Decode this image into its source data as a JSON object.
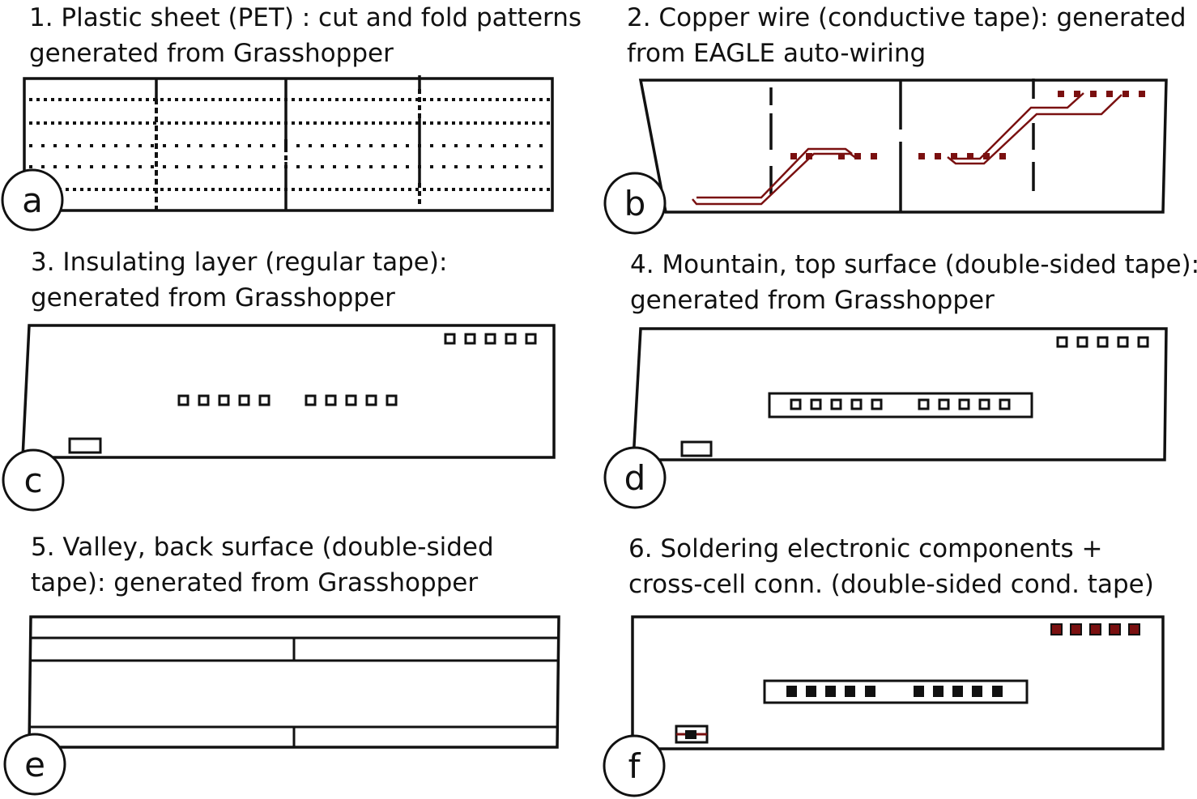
{
  "colors": {
    "ink": "#111111",
    "copper": "#7a1010",
    "background": "#ffffff"
  },
  "panels": [
    {
      "letter": "a",
      "caption_line1": "1. Plastic sheet (PET) : cut and fold patterns",
      "caption_line2": "generated from Grasshopper"
    },
    {
      "letter": "b",
      "caption_line1": "2. Copper wire (conductive tape): generated",
      "caption_line2": "from EAGLE auto-wiring"
    },
    {
      "letter": "c",
      "caption_line1": "3. Insulating layer (regular tape):",
      "caption_line2": "generated from Grasshopper"
    },
    {
      "letter": "d",
      "caption_line1": "4. Mountain, top surface (double-sided tape):",
      "caption_line2": "generated from Grasshopper"
    },
    {
      "letter": "e",
      "caption_line1": "5. Valley, back surface (double-sided",
      "caption_line2": "tape): generated from Grasshopper"
    },
    {
      "letter": "f",
      "caption_line1": "6. Soldering electronic components +",
      "caption_line2": "cross-cell conn. (double-sided cond. tape)"
    }
  ]
}
